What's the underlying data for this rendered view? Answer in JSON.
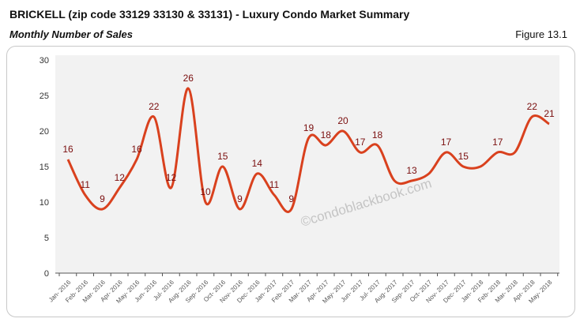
{
  "header": {
    "title": "BRICKELL (zip code 33129 33130 & 33131) - Luxury Condo Market Summary",
    "subtitle": "Monthly Number of Sales",
    "figure": "Figure 13.1"
  },
  "watermark": "©condoblackbook.com",
  "chart_data": {
    "type": "line",
    "title": "",
    "xlabel": "",
    "ylabel": "",
    "ylim": [
      0,
      30
    ],
    "yticks": [
      0,
      5,
      10,
      15,
      20,
      25,
      30
    ],
    "grid": false,
    "line_color": "#d9411e",
    "label_color": "#7a0e0e",
    "categories": [
      "Jan- 2016",
      "Feb- 2016",
      "Mar- 2016",
      "Apr- 2016",
      "May- 2016",
      "Jun- 2016",
      "Jul- 2016",
      "Aug- 2016",
      "Sep- 2016",
      "Oct- 2016",
      "Nov- 2016",
      "Dec- 2016",
      "Jan- 2017",
      "Feb- 2017",
      "Mar- 2017",
      "Apr- 2017",
      "May- 2017",
      "Jun- 2017",
      "Jul- 2017",
      "Aug- 2017",
      "Sep- 2017",
      "Oct- 2017",
      "Nov- 2017",
      "Dec- 2017",
      "Jan- 2018",
      "Feb- 2018",
      "Mar- 2018",
      "Apr- 2018",
      "May- 2018"
    ],
    "values": [
      16,
      11,
      9,
      12,
      16,
      22,
      12,
      26,
      10,
      15,
      9,
      14,
      11,
      9,
      19,
      18,
      20,
      17,
      18,
      13,
      13,
      14,
      17,
      15,
      15,
      17,
      17,
      22,
      21
    ],
    "data_labels": [
      "16",
      "11",
      "9",
      "12",
      "16",
      "22",
      "12",
      "26",
      "10",
      "15",
      "9",
      "14",
      "11",
      "9",
      "19",
      "18",
      "20",
      "17",
      "18",
      null,
      "13",
      null,
      "17",
      "15",
      null,
      "17",
      null,
      "22",
      "21"
    ]
  }
}
